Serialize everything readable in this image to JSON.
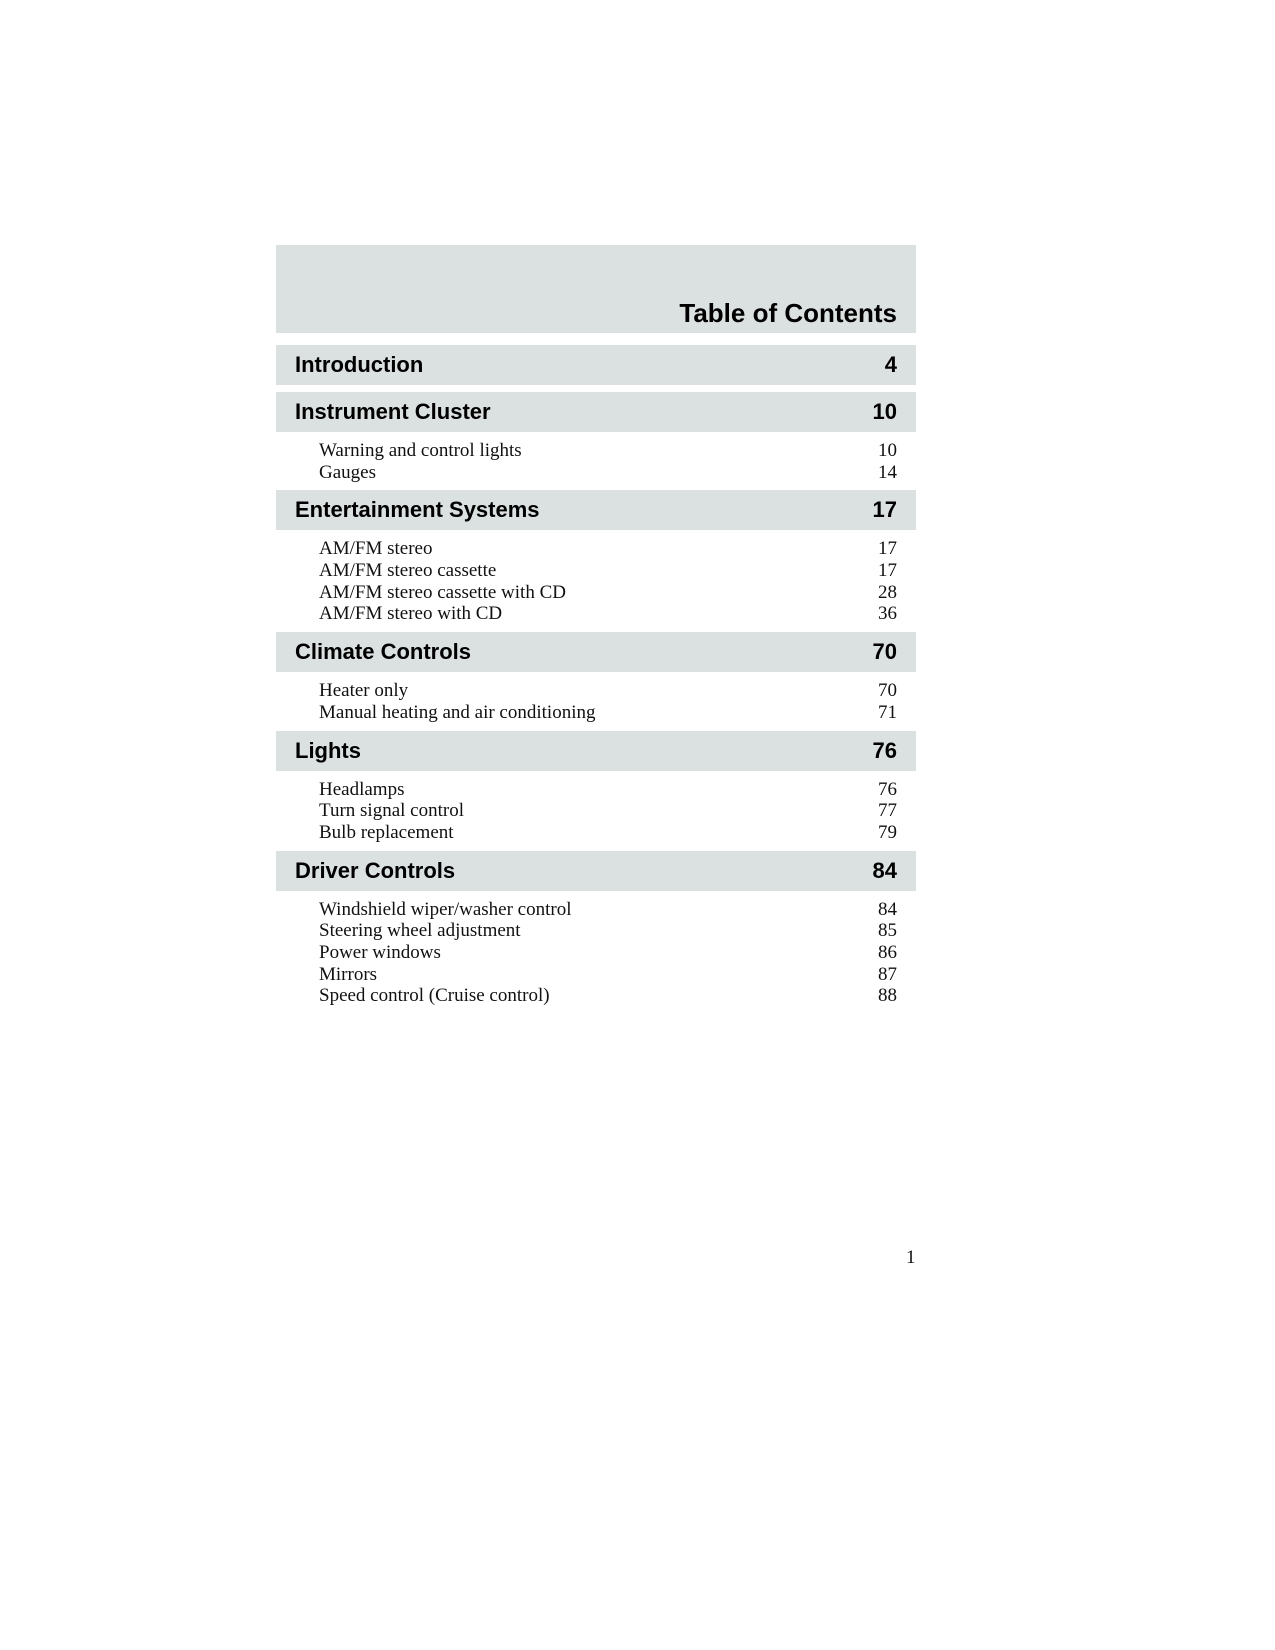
{
  "title": "Table of Contents",
  "sections": [
    {
      "label": "Introduction",
      "page": "4",
      "items": []
    },
    {
      "label": "Instrument Cluster",
      "page": "10",
      "items": [
        {
          "label": "Warning and control lights",
          "page": "10"
        },
        {
          "label": "Gauges",
          "page": "14"
        }
      ]
    },
    {
      "label": "Entertainment Systems",
      "page": "17",
      "items": [
        {
          "label": "AM/FM stereo",
          "page": "17"
        },
        {
          "label": "AM/FM stereo cassette",
          "page": "17"
        },
        {
          "label": "AM/FM stereo cassette with CD",
          "page": "28"
        },
        {
          "label": "AM/FM stereo with CD",
          "page": "36"
        }
      ]
    },
    {
      "label": "Climate Controls",
      "page": "70",
      "items": [
        {
          "label": "Heater only",
          "page": "70"
        },
        {
          "label": "Manual heating and air conditioning",
          "page": "71"
        }
      ]
    },
    {
      "label": "Lights",
      "page": "76",
      "items": [
        {
          "label": "Headlamps",
          "page": "76"
        },
        {
          "label": "Turn signal control",
          "page": "77"
        },
        {
          "label": "Bulb replacement",
          "page": "79"
        }
      ]
    },
    {
      "label": "Driver Controls",
      "page": "84",
      "items": [
        {
          "label": "Windshield wiper/washer control",
          "page": "84"
        },
        {
          "label": "Steering wheel adjustment",
          "page": "85"
        },
        {
          "label": "Power windows",
          "page": "86"
        },
        {
          "label": "Mirrors",
          "page": "87"
        },
        {
          "label": "Speed control (Cruise control)",
          "page": "88"
        }
      ]
    }
  ],
  "page_number": "1",
  "colors": {
    "band": "#dbe0e0",
    "text": "#000000"
  }
}
